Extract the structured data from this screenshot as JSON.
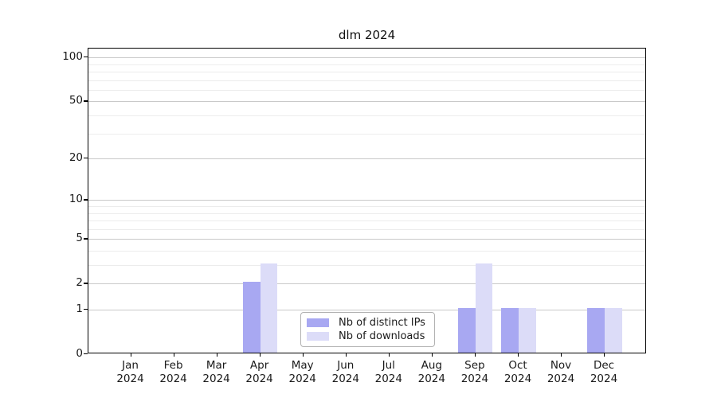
{
  "chart": {
    "title": "dlm 2024"
  },
  "chart_data": {
    "type": "bar",
    "title": "dlm 2024",
    "scale": "log1p",
    "categories": [
      "Jan",
      "Feb",
      "Mar",
      "Apr",
      "May",
      "Jun",
      "Jul",
      "Aug",
      "Sep",
      "Oct",
      "Nov",
      "Dec"
    ],
    "year": "2024",
    "series": [
      {
        "name": "Nb of distinct IPs",
        "color": "#a8a8f2",
        "values": [
          0,
          0,
          0,
          2,
          0,
          0,
          0,
          0,
          1,
          1,
          0,
          1
        ]
      },
      {
        "name": "Nb of downloads",
        "color": "#dcdcf8",
        "values": [
          0,
          0,
          0,
          3,
          0,
          0,
          0,
          0,
          3,
          1,
          0,
          1
        ]
      }
    ],
    "y_ticks": [
      0,
      1,
      2,
      5,
      10,
      20,
      50,
      100
    ],
    "y_tick_labels": [
      "0",
      "1",
      "2",
      "5",
      "10",
      "20",
      "50",
      "100"
    ],
    "y_minor_ticks": [
      3,
      4,
      6,
      7,
      8,
      9,
      30,
      40,
      60,
      70,
      80,
      90
    ],
    "ylim": [
      0,
      115
    ],
    "xlabel": "",
    "ylabel": "",
    "grid": true,
    "legend_position": "lower center inside"
  },
  "legend": {
    "items": [
      {
        "label": "Nb of distinct IPs",
        "color": "#a8a8f2"
      },
      {
        "label": "Nb of downloads",
        "color": "#dcdcf8"
      }
    ]
  },
  "colors": {
    "series_ips": "#a8a8f2",
    "series_downloads": "#dcdcf8",
    "grid_major": "#c9c9c9",
    "grid_minor": "#ececec",
    "axis": "#000000",
    "text": "#1a1a1a"
  }
}
